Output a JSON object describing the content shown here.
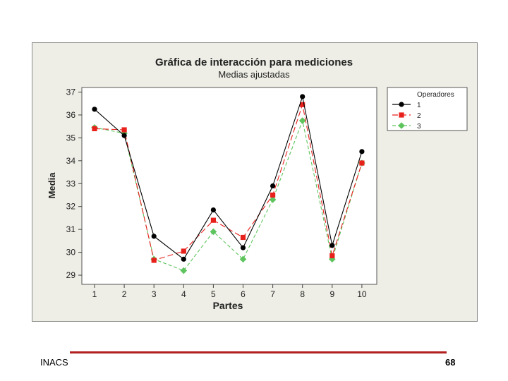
{
  "chart_data": {
    "type": "line",
    "title": "Gráfica de interacción para mediciones",
    "subtitle": "Medias ajustadas",
    "xlabel": "Partes",
    "ylabel": "Media",
    "categories": [
      "1",
      "2",
      "3",
      "4",
      "5",
      "6",
      "7",
      "8",
      "9",
      "10"
    ],
    "yticks": [
      "29",
      "30",
      "31",
      "32",
      "33",
      "34",
      "35",
      "36",
      "37"
    ],
    "ylim": [
      28.6,
      37.2
    ],
    "legend_title": "Operadores",
    "legend_position": "right",
    "series": [
      {
        "name": "1",
        "values": [
          36.25,
          35.1,
          30.7,
          29.7,
          31.85,
          30.2,
          32.9,
          36.8,
          30.3,
          34.4
        ],
        "color": "#000000",
        "marker": "circle",
        "dash": "none"
      },
      {
        "name": "2",
        "values": [
          35.4,
          35.35,
          29.65,
          30.05,
          31.4,
          30.65,
          32.5,
          36.45,
          29.85,
          33.9
        ],
        "color": "#e8201c",
        "marker": "square",
        "dash": "8,4"
      },
      {
        "name": "3",
        "values": [
          35.45,
          35.2,
          29.7,
          29.2,
          30.9,
          29.7,
          32.3,
          35.75,
          29.7,
          33.9
        ],
        "color": "#5ec45e",
        "marker": "diamond",
        "dash": "5,3"
      }
    ]
  },
  "footer": {
    "left": "INACS",
    "page_number": "68"
  }
}
